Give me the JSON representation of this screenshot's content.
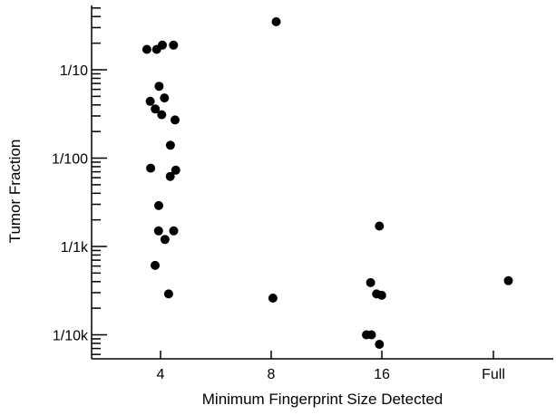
{
  "chart_data": {
    "type": "scatter",
    "title": "",
    "xlabel": "Minimum Fingerprint Size Detected",
    "ylabel": "Tumor Fraction",
    "x_categories": [
      "4",
      "8",
      "16",
      "Full"
    ],
    "y_scale": "log",
    "y_ticks": [
      {
        "value": 0.1,
        "label": "1/10"
      },
      {
        "value": 0.01,
        "label": "1/100"
      },
      {
        "value": 0.001,
        "label": "1/1k"
      },
      {
        "value": 0.0001,
        "label": "1/10k"
      }
    ],
    "ylim": [
      6e-05,
      0.5
    ],
    "grid": false,
    "marker_color": "#000000",
    "points": [
      {
        "x": "4",
        "y": 0.19
      },
      {
        "x": "4",
        "y": 0.17
      },
      {
        "x": "4",
        "y": 0.19
      },
      {
        "x": "4",
        "y": 0.17
      },
      {
        "x": "4",
        "y": 0.065
      },
      {
        "x": "4",
        "y": 0.048
      },
      {
        "x": "4",
        "y": 0.044
      },
      {
        "x": "4",
        "y": 0.036
      },
      {
        "x": "4",
        "y": 0.031
      },
      {
        "x": "4",
        "y": 0.027
      },
      {
        "x": "4",
        "y": 0.014
      },
      {
        "x": "4",
        "y": 0.0077
      },
      {
        "x": "4",
        "y": 0.0073
      },
      {
        "x": "4",
        "y": 0.0062
      },
      {
        "x": "4",
        "y": 0.0029
      },
      {
        "x": "4",
        "y": 0.0015
      },
      {
        "x": "4",
        "y": 0.0015
      },
      {
        "x": "4",
        "y": 0.0012
      },
      {
        "x": "4",
        "y": 0.00061
      },
      {
        "x": "4",
        "y": 0.00029
      },
      {
        "x": "8",
        "y": 0.00026
      },
      {
        "x": "8",
        "y": 0.35
      },
      {
        "x": "16",
        "y": 0.0017
      },
      {
        "x": "16",
        "y": 0.00039
      },
      {
        "x": "16",
        "y": 0.00029
      },
      {
        "x": "16",
        "y": 0.00028
      },
      {
        "x": "16",
        "y": 0.0001
      },
      {
        "x": "16",
        "y": 0.0001
      },
      {
        "x": "16",
        "y": 7.8e-05
      },
      {
        "x": "Full",
        "y": 0.00041
      }
    ]
  }
}
